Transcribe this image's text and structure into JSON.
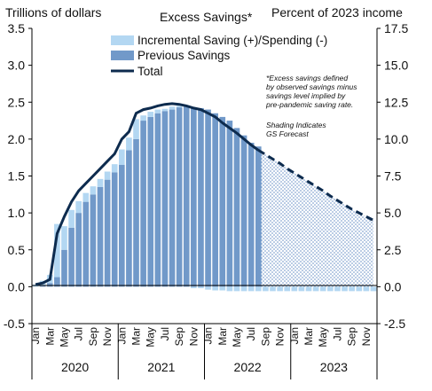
{
  "chart_data": {
    "type": "bar",
    "title": "Excess Savings*",
    "ylabel_left": "Trillions of dollars",
    "ylabel_right": "Percent of 2023 income",
    "ylim_left": [
      -0.5,
      3.5
    ],
    "yticks_left": [
      "3.5",
      "3.0",
      "2.5",
      "2.0",
      "1.5",
      "1.0",
      "0.5",
      "0.0",
      "-0.5"
    ],
    "ylim_right": [
      -2.5,
      17.5
    ],
    "yticks_right": [
      "17.5",
      "15.0",
      "12.5",
      "10.0",
      "7.5",
      "5.0",
      "2.5",
      "0.0",
      "-2.5"
    ],
    "month_labels": [
      "Jan",
      "Mar",
      "May",
      "Jul",
      "Sep",
      "Nov"
    ],
    "years": [
      "2020",
      "2021",
      "2022",
      "2023"
    ],
    "legend": {
      "incremental": "Incremental Saving (+)/Spending (-)",
      "previous": "Previous Savings",
      "total": "Total"
    },
    "note": [
      "*Excess savings defined",
      "by observed savings minus",
      "savings level implied by",
      "pre-pandemic saving rate."
    ],
    "shading_note": [
      "Shading Indicates",
      "GS Forecast"
    ],
    "previous_savings": [
      0.0,
      0.02,
      0.05,
      0.13,
      0.5,
      0.8,
      1.0,
      1.15,
      1.25,
      1.35,
      1.45,
      1.55,
      1.65,
      1.85,
      2.0,
      2.25,
      2.3,
      2.35,
      2.38,
      2.4,
      2.43,
      2.44,
      2.42,
      2.42,
      2.4,
      2.35,
      2.3,
      2.25,
      2.15,
      2.05,
      1.95,
      1.9,
      0,
      0,
      0,
      0,
      0,
      0,
      0,
      0,
      0,
      0,
      0,
      0,
      0,
      0,
      0,
      0
    ],
    "incremental": [
      0.03,
      0.06,
      0.11,
      0.72,
      0.32,
      0.24,
      0.16,
      0.12,
      0.11,
      0.11,
      0.11,
      0.11,
      0.21,
      0.17,
      0.27,
      0.07,
      0.07,
      0.05,
      0.03,
      0.04,
      0.02,
      0.0,
      -0.02,
      -0.02,
      -0.04,
      -0.05,
      -0.05,
      -0.06,
      -0.06,
      -0.06,
      -0.06,
      -0.06,
      -0.06,
      -0.06,
      -0.06,
      -0.06,
      -0.06,
      -0.06,
      -0.06,
      -0.06,
      -0.06,
      -0.06,
      -0.06,
      -0.06,
      -0.06,
      -0.06,
      -0.06,
      -0.06
    ],
    "total": [
      0.03,
      0.05,
      0.1,
      0.72,
      0.95,
      1.15,
      1.3,
      1.4,
      1.5,
      1.6,
      1.7,
      1.8,
      2.0,
      2.1,
      2.35,
      2.4,
      2.42,
      2.45,
      2.47,
      2.48,
      2.47,
      2.45,
      2.42,
      2.4,
      2.35,
      2.3,
      2.22,
      2.15,
      2.08,
      2.0,
      1.92,
      1.85,
      1.79,
      1.73,
      1.67,
      1.6,
      1.54,
      1.48,
      1.42,
      1.36,
      1.3,
      1.23,
      1.17,
      1.11,
      1.05,
      1.0,
      0.95,
      0.9
    ],
    "forecast_start_index": 32,
    "colors": {
      "incremental": "#b3d7f2",
      "previous": "#7199c9",
      "total": "#0d2b4e",
      "forecast_hatch": "#5f89c2"
    }
  }
}
